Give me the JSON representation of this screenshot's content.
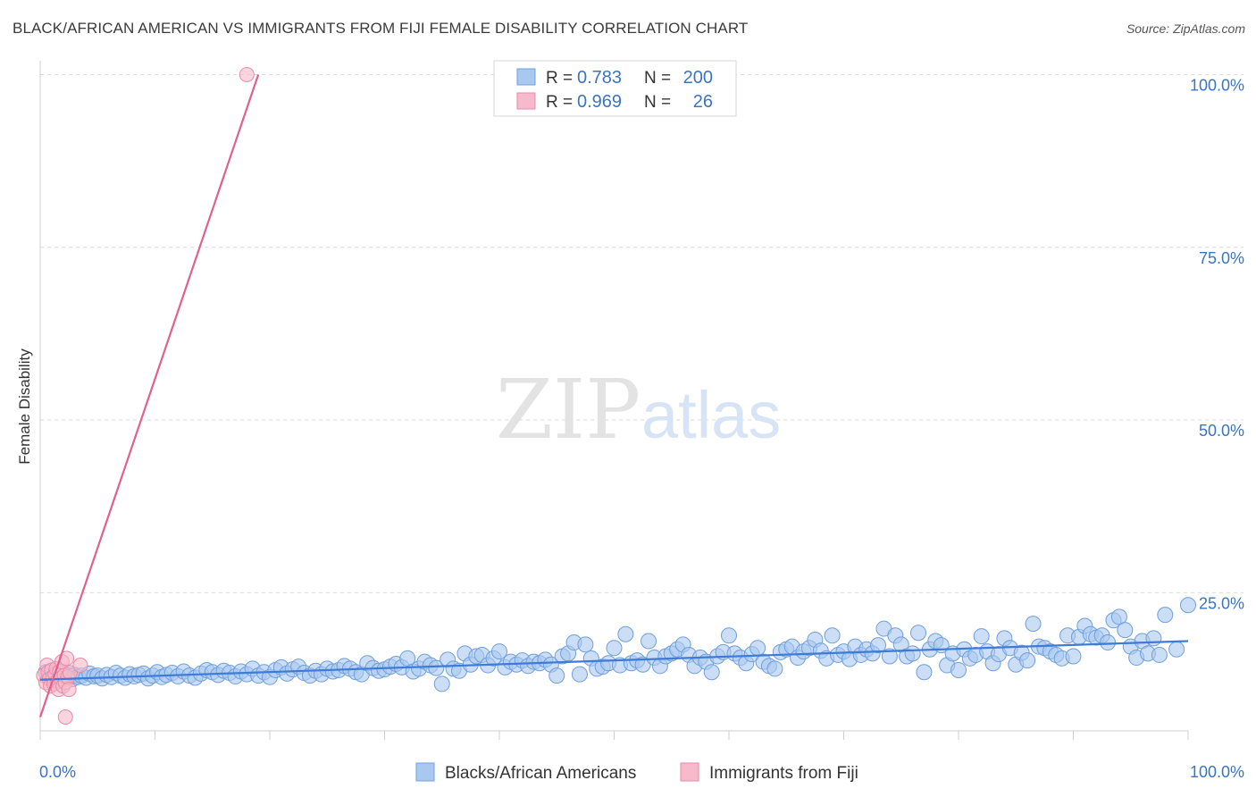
{
  "header": {
    "title": "BLACK/AFRICAN AMERICAN VS IMMIGRANTS FROM FIJI FEMALE DISABILITY CORRELATION CHART",
    "source": "Source: ZipAtlas.com"
  },
  "watermark": {
    "zip": "ZIP",
    "atlas": "atlas"
  },
  "stats_legend": {
    "rows": [
      {
        "r_label": "R =",
        "r_value": "0.783",
        "n_label": "N =",
        "n_value": "200",
        "color": "#a9c8f0"
      },
      {
        "r_label": "R =",
        "r_value": "0.969",
        "n_label": "N =",
        "n_value": "26",
        "color": "#f7b9cc"
      }
    ]
  },
  "colors": {
    "blue_fill": "#a9c8f0",
    "blue_stroke": "#6f9fdc",
    "blue_line": "#3d7bd6",
    "pink_fill": "#f7b9cc",
    "pink_stroke": "#e88aa8",
    "pink_line": "#e0608e",
    "tick_label": "#3a74c4",
    "grid": "#d9d9d9"
  },
  "chart_data": {
    "type": "scatter",
    "title": "BLACK/AFRICAN AMERICAN VS IMMIGRANTS FROM FIJI FEMALE DISABILITY CORRELATION CHART",
    "xlabel": "",
    "ylabel": "Female Disability",
    "xlim": [
      0,
      100
    ],
    "ylim": [
      5,
      102
    ],
    "x_tick_labels": [
      "0.0%",
      "100.0%"
    ],
    "y_ticks": [
      25,
      50,
      75,
      100
    ],
    "y_tick_labels": [
      "25.0%",
      "50.0%",
      "75.0%",
      "100.0%"
    ],
    "series": [
      {
        "name": "Blacks/African Americans",
        "color": "#a9c8f0",
        "r": 0.783,
        "n": 200,
        "trend": {
          "x": [
            0,
            100
          ],
          "y": [
            12.4,
            18.0
          ]
        },
        "points": [
          [
            0.5,
            13.5
          ],
          [
            0.8,
            12.8
          ],
          [
            1.0,
            13.0
          ],
          [
            1.2,
            12.6
          ],
          [
            1.5,
            13.2
          ],
          [
            1.8,
            12.4
          ],
          [
            2.0,
            13.4
          ],
          [
            2.2,
            12.9
          ],
          [
            2.5,
            13.0
          ],
          [
            2.8,
            12.5
          ],
          [
            3.0,
            13.1
          ],
          [
            3.3,
            12.8
          ],
          [
            3.6,
            13.0
          ],
          [
            4.0,
            12.7
          ],
          [
            4.3,
            13.3
          ],
          [
            4.7,
            12.9
          ],
          [
            5.0,
            13.0
          ],
          [
            5.4,
            12.6
          ],
          [
            5.8,
            13.1
          ],
          [
            6.2,
            12.8
          ],
          [
            6.6,
            13.4
          ],
          [
            7.0,
            13.0
          ],
          [
            7.4,
            12.7
          ],
          [
            7.8,
            13.2
          ],
          [
            8.2,
            12.9
          ],
          [
            8.6,
            13.1
          ],
          [
            9.0,
            13.3
          ],
          [
            9.4,
            12.6
          ],
          [
            9.8,
            13.0
          ],
          [
            10.2,
            13.5
          ],
          [
            10.6,
            12.8
          ],
          [
            11.0,
            13.1
          ],
          [
            11.5,
            13.4
          ],
          [
            12.0,
            12.9
          ],
          [
            12.5,
            13.6
          ],
          [
            13.0,
            13.0
          ],
          [
            13.5,
            12.7
          ],
          [
            14.0,
            13.3
          ],
          [
            14.5,
            13.8
          ],
          [
            15.0,
            13.5
          ],
          [
            15.5,
            13.1
          ],
          [
            16.0,
            13.7
          ],
          [
            16.5,
            13.4
          ],
          [
            17.0,
            12.9
          ],
          [
            17.5,
            13.6
          ],
          [
            18.0,
            13.2
          ],
          [
            18.5,
            14.0
          ],
          [
            19.0,
            13.0
          ],
          [
            19.5,
            13.5
          ],
          [
            20.0,
            12.8
          ],
          [
            20.5,
            13.8
          ],
          [
            21.0,
            14.2
          ],
          [
            21.5,
            13.3
          ],
          [
            22.0,
            13.9
          ],
          [
            22.5,
            14.3
          ],
          [
            23.0,
            13.4
          ],
          [
            23.5,
            13.0
          ],
          [
            24.0,
            13.7
          ],
          [
            24.5,
            13.2
          ],
          [
            25.0,
            14.0
          ],
          [
            25.5,
            13.6
          ],
          [
            26.0,
            13.8
          ],
          [
            26.5,
            14.4
          ],
          [
            27.0,
            14.0
          ],
          [
            27.5,
            13.5
          ],
          [
            28.0,
            13.2
          ],
          [
            28.5,
            14.8
          ],
          [
            29.0,
            14.1
          ],
          [
            29.5,
            13.7
          ],
          [
            30.0,
            13.9
          ],
          [
            30.5,
            14.3
          ],
          [
            31.0,
            14.7
          ],
          [
            31.5,
            14.2
          ],
          [
            32.0,
            15.5
          ],
          [
            32.5,
            13.6
          ],
          [
            33.0,
            14.0
          ],
          [
            33.5,
            15.0
          ],
          [
            34.0,
            14.5
          ],
          [
            34.5,
            14.1
          ],
          [
            35.0,
            11.8
          ],
          [
            35.5,
            15.3
          ],
          [
            36.0,
            14.0
          ],
          [
            36.5,
            13.7
          ],
          [
            37.0,
            16.2
          ],
          [
            37.5,
            14.6
          ],
          [
            38.0,
            15.8
          ],
          [
            38.5,
            16.0
          ],
          [
            39.0,
            14.5
          ],
          [
            39.5,
            15.5
          ],
          [
            40.0,
            16.5
          ],
          [
            40.5,
            14.2
          ],
          [
            41.0,
            15.0
          ],
          [
            41.5,
            14.6
          ],
          [
            42.0,
            15.2
          ],
          [
            42.5,
            14.4
          ],
          [
            43.0,
            15.0
          ],
          [
            43.5,
            14.8
          ],
          [
            44.0,
            15.3
          ],
          [
            44.5,
            14.6
          ],
          [
            45.0,
            13.0
          ],
          [
            45.5,
            15.8
          ],
          [
            46.0,
            16.2
          ],
          [
            46.5,
            17.8
          ],
          [
            47.0,
            13.2
          ],
          [
            47.5,
            17.5
          ],
          [
            48.0,
            15.5
          ],
          [
            48.5,
            14.0
          ],
          [
            49.0,
            14.3
          ],
          [
            49.5,
            14.8
          ],
          [
            50.0,
            17.0
          ],
          [
            50.5,
            14.5
          ],
          [
            51.0,
            19.0
          ],
          [
            51.5,
            14.8
          ],
          [
            52.0,
            15.2
          ],
          [
            52.5,
            14.6
          ],
          [
            53.0,
            18.0
          ],
          [
            53.5,
            15.6
          ],
          [
            54.0,
            14.4
          ],
          [
            54.5,
            15.8
          ],
          [
            55.0,
            16.2
          ],
          [
            55.5,
            16.8
          ],
          [
            56.0,
            17.5
          ],
          [
            56.5,
            16.0
          ],
          [
            57.0,
            14.4
          ],
          [
            57.5,
            15.6
          ],
          [
            58.0,
            15.0
          ],
          [
            58.5,
            13.5
          ],
          [
            59.0,
            15.8
          ],
          [
            59.5,
            16.4
          ],
          [
            60.0,
            18.8
          ],
          [
            60.5,
            16.2
          ],
          [
            61.0,
            15.6
          ],
          [
            61.5,
            14.8
          ],
          [
            62.0,
            16.1
          ],
          [
            62.5,
            17.0
          ],
          [
            63.0,
            15.0
          ],
          [
            63.5,
            14.4
          ],
          [
            64.0,
            14.0
          ],
          [
            64.5,
            16.4
          ],
          [
            65.0,
            16.8
          ],
          [
            65.5,
            17.2
          ],
          [
            66.0,
            15.6
          ],
          [
            66.5,
            16.5
          ],
          [
            67.0,
            17.0
          ],
          [
            67.5,
            18.2
          ],
          [
            68.0,
            16.6
          ],
          [
            68.5,
            15.5
          ],
          [
            69.0,
            18.8
          ],
          [
            69.5,
            16.0
          ],
          [
            70.0,
            16.5
          ],
          [
            70.5,
            15.4
          ],
          [
            71.0,
            17.2
          ],
          [
            71.5,
            16.0
          ],
          [
            72.0,
            16.8
          ],
          [
            72.5,
            16.2
          ],
          [
            73.0,
            17.4
          ],
          [
            73.5,
            19.8
          ],
          [
            74.0,
            15.8
          ],
          [
            74.5,
            18.8
          ],
          [
            75.0,
            17.5
          ],
          [
            75.5,
            15.8
          ],
          [
            76.0,
            16.2
          ],
          [
            76.5,
            19.2
          ],
          [
            77.0,
            13.5
          ],
          [
            77.5,
            16.8
          ],
          [
            78.0,
            18.0
          ],
          [
            78.5,
            17.4
          ],
          [
            79.0,
            14.5
          ],
          [
            79.5,
            16.2
          ],
          [
            80.0,
            13.8
          ],
          [
            80.5,
            16.8
          ],
          [
            81.0,
            15.5
          ],
          [
            81.5,
            16.0
          ],
          [
            82.0,
            18.7
          ],
          [
            82.5,
            16.5
          ],
          [
            83.0,
            14.8
          ],
          [
            83.5,
            16.1
          ],
          [
            84.0,
            18.4
          ],
          [
            84.5,
            17.0
          ],
          [
            85.0,
            14.6
          ],
          [
            85.5,
            16.3
          ],
          [
            86.0,
            15.2
          ],
          [
            86.5,
            20.5
          ],
          [
            87.0,
            17.2
          ],
          [
            87.5,
            17.0
          ],
          [
            88.0,
            16.5
          ],
          [
            88.5,
            16.0
          ],
          [
            89.0,
            15.5
          ],
          [
            89.5,
            18.8
          ],
          [
            90.0,
            15.8
          ],
          [
            90.5,
            18.6
          ],
          [
            91.0,
            20.2
          ],
          [
            91.5,
            19.0
          ],
          [
            92.0,
            18.5
          ],
          [
            92.5,
            18.8
          ],
          [
            93.0,
            17.8
          ],
          [
            93.5,
            21.0
          ],
          [
            94.0,
            21.5
          ],
          [
            94.5,
            19.6
          ],
          [
            95.0,
            17.2
          ],
          [
            95.5,
            15.6
          ],
          [
            96.0,
            18.0
          ],
          [
            96.5,
            16.2
          ],
          [
            97.0,
            18.4
          ],
          [
            97.5,
            16.0
          ],
          [
            98.0,
            21.8
          ],
          [
            99.0,
            16.8
          ],
          [
            100.0,
            23.2
          ]
        ]
      },
      {
        "name": "Immigrants from Fiji",
        "color": "#f7b9cc",
        "r": 0.969,
        "n": 26,
        "trend": {
          "x": [
            0,
            19
          ],
          "y": [
            7.0,
            100.0
          ]
        },
        "points": [
          [
            0.3,
            13.0
          ],
          [
            0.5,
            12.0
          ],
          [
            0.6,
            14.5
          ],
          [
            0.7,
            13.5
          ],
          [
            0.8,
            12.5
          ],
          [
            0.9,
            11.5
          ],
          [
            1.0,
            13.8
          ],
          [
            1.1,
            12.8
          ],
          [
            1.2,
            11.8
          ],
          [
            1.3,
            13.2
          ],
          [
            1.4,
            14.0
          ],
          [
            1.5,
            12.2
          ],
          [
            1.6,
            11.0
          ],
          [
            1.7,
            13.6
          ],
          [
            1.8,
            12.6
          ],
          [
            1.9,
            15.0
          ],
          [
            2.0,
            11.5
          ],
          [
            2.1,
            13.0
          ],
          [
            2.2,
            12.0
          ],
          [
            2.3,
            15.5
          ],
          [
            2.4,
            12.8
          ],
          [
            2.5,
            11.0
          ],
          [
            2.2,
            7.0
          ],
          [
            2.6,
            13.4
          ],
          [
            3.5,
            14.5
          ],
          [
            18.0,
            100.0
          ]
        ]
      }
    ]
  },
  "bottom_legend": {
    "items": [
      {
        "label": "Blacks/African Americans",
        "color": "#a9c8f0"
      },
      {
        "label": "Immigrants from Fiji",
        "color": "#f7b9cc"
      }
    ]
  }
}
